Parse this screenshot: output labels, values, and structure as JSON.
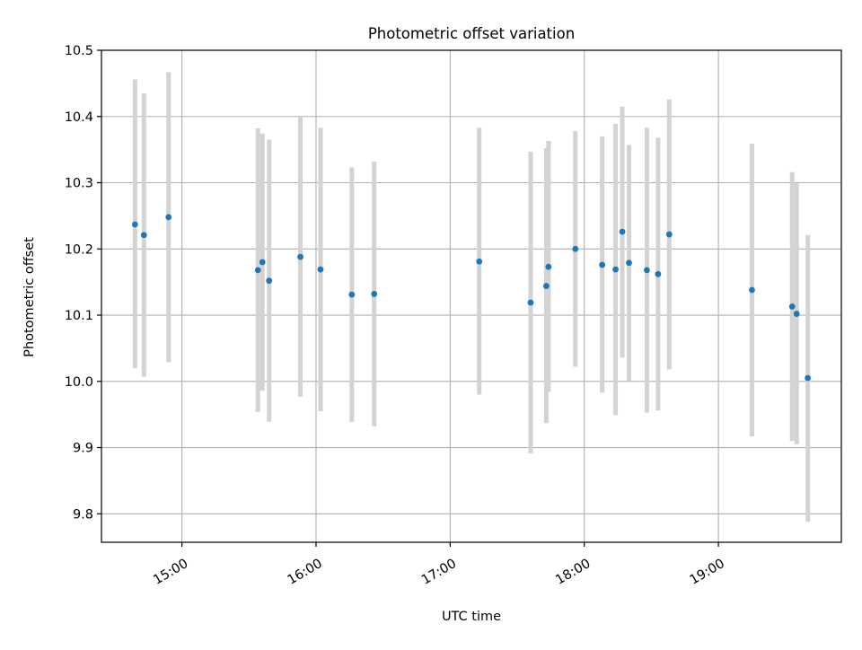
{
  "colors": {
    "marker": "#1f77b4",
    "errorbar": "#d3d3d3",
    "grid": "#b0b0b0",
    "axes": "#000000"
  },
  "chart_data": {
    "type": "scatter",
    "title": "Photometric offset variation",
    "xlabel": "UTC time",
    "ylabel": "Photometric offset",
    "x_unit": "UTC clock time (HH:MM)",
    "xlim": [
      "14:24",
      "19:55"
    ],
    "ylim": [
      9.757,
      10.5
    ],
    "x_ticks": [
      "15:00",
      "16:00",
      "17:00",
      "18:00",
      "19:00"
    ],
    "y_ticks": [
      9.8,
      9.9,
      10.0,
      10.1,
      10.2,
      10.3,
      10.4,
      10.5
    ],
    "y_tick_labels": [
      "9.8",
      "9.9",
      "10.0",
      "10.1",
      "10.2",
      "10.3",
      "10.4",
      "10.5"
    ],
    "grid": true,
    "points": [
      {
        "t": "14:39",
        "y": 10.237,
        "lo": 10.02,
        "hi": 10.456
      },
      {
        "t": "14:43",
        "y": 10.221,
        "lo": 10.007,
        "hi": 10.435
      },
      {
        "t": "14:54",
        "y": 10.248,
        "lo": 10.029,
        "hi": 10.467
      },
      {
        "t": "15:34",
        "y": 10.168,
        "lo": 9.954,
        "hi": 10.382
      },
      {
        "t": "15:36",
        "y": 10.18,
        "lo": 9.986,
        "hi": 10.374
      },
      {
        "t": "15:39",
        "y": 10.152,
        "lo": 9.939,
        "hi": 10.365
      },
      {
        "t": "15:53",
        "y": 10.188,
        "lo": 9.977,
        "hi": 10.4
      },
      {
        "t": "16:02",
        "y": 10.169,
        "lo": 9.955,
        "hi": 10.383
      },
      {
        "t": "16:16",
        "y": 10.131,
        "lo": 9.939,
        "hi": 10.323
      },
      {
        "t": "16:26",
        "y": 10.132,
        "lo": 9.932,
        "hi": 10.332
      },
      {
        "t": "17:13",
        "y": 10.181,
        "lo": 9.98,
        "hi": 10.383
      },
      {
        "t": "17:36",
        "y": 10.119,
        "lo": 9.891,
        "hi": 10.347
      },
      {
        "t": "17:43",
        "y": 10.144,
        "lo": 9.937,
        "hi": 10.352
      },
      {
        "t": "17:44",
        "y": 10.173,
        "lo": 9.984,
        "hi": 10.363
      },
      {
        "t": "17:56",
        "y": 10.2,
        "lo": 10.022,
        "hi": 10.378
      },
      {
        "t": "18:08",
        "y": 10.176,
        "lo": 9.983,
        "hi": 10.37
      },
      {
        "t": "18:14",
        "y": 10.169,
        "lo": 9.949,
        "hi": 10.389
      },
      {
        "t": "18:17",
        "y": 10.226,
        "lo": 10.036,
        "hi": 10.415
      },
      {
        "t": "18:20",
        "y": 10.179,
        "lo": 10.001,
        "hi": 10.357
      },
      {
        "t": "18:28",
        "y": 10.168,
        "lo": 9.953,
        "hi": 10.383
      },
      {
        "t": "18:33",
        "y": 10.162,
        "lo": 9.956,
        "hi": 10.368
      },
      {
        "t": "18:38",
        "y": 10.222,
        "lo": 10.018,
        "hi": 10.426
      },
      {
        "t": "19:15",
        "y": 10.138,
        "lo": 9.917,
        "hi": 10.359
      },
      {
        "t": "19:33",
        "y": 10.113,
        "lo": 9.91,
        "hi": 10.316
      },
      {
        "t": "19:35",
        "y": 10.102,
        "lo": 9.905,
        "hi": 10.299
      },
      {
        "t": "19:40",
        "y": 10.005,
        "lo": 9.788,
        "hi": 10.221
      }
    ]
  }
}
